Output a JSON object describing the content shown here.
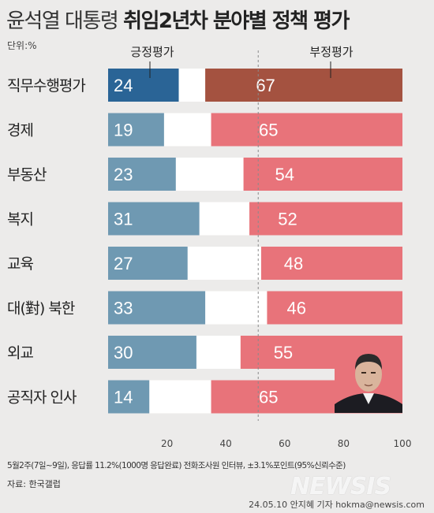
{
  "title": {
    "prefix": "윤석열 대통령",
    "highlight": "취임2년차 분야별 정책 평가"
  },
  "unit": "단위:%",
  "chart_data": {
    "type": "bar",
    "orientation": "horizontal",
    "subtype": "diverging-stacked",
    "categories": [
      "직무수행평가",
      "경제",
      "부동산",
      "복지",
      "교육",
      "대(對) 북한",
      "외교",
      "공직자 인사"
    ],
    "series": [
      {
        "name": "긍정평가",
        "values": [
          24,
          19,
          23,
          31,
          27,
          33,
          30,
          14
        ]
      },
      {
        "name": "부정평가",
        "values": [
          67,
          65,
          54,
          52,
          48,
          46,
          55,
          65
        ]
      }
    ],
    "xlim": [
      0,
      100
    ],
    "xticks": [
      20,
      40,
      60,
      80,
      100
    ],
    "colors": {
      "positive": "#6f99b2",
      "positive_highlight": "#2a6496",
      "negative": "#e8737a",
      "negative_highlight": "#a45240",
      "gap": "#ffffff"
    }
  },
  "footnote": "5월2주(7일~9일), 응답률 11.2%(1000명 응답완료) 전화조사원 인터뷰, ±3.1%포인트(95%신뢰수준)",
  "source": "자료: 한국갤럽",
  "credit": "24.05.10 안지혜 기자 hokma@newsis.com",
  "watermark": "NEWSIS",
  "photo_icon": "person-portrait-icon"
}
